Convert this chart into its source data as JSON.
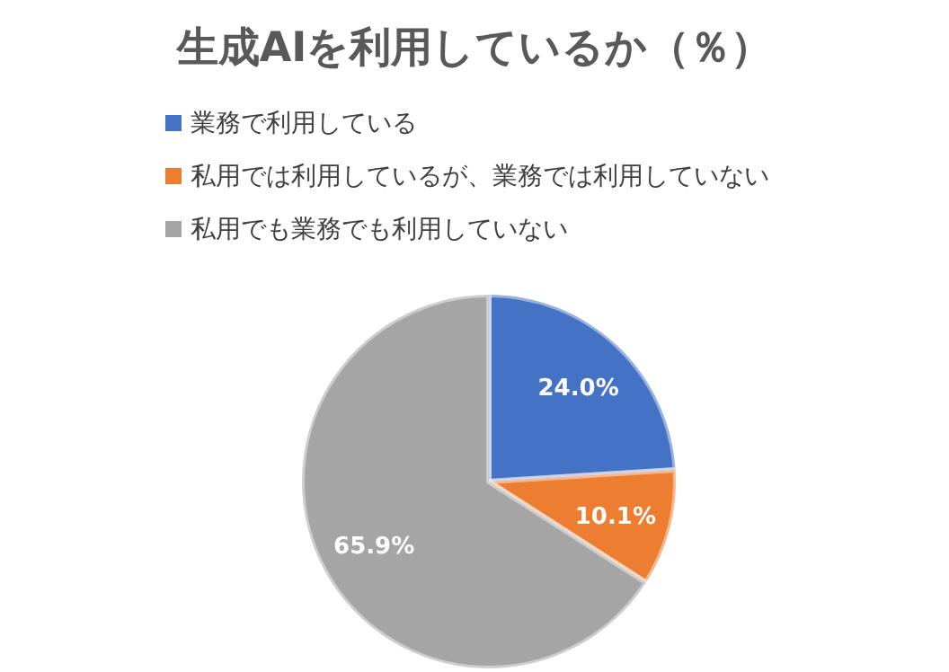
{
  "chart_data": {
    "type": "pie",
    "title": "生成AIを利用しているか（％）",
    "categories": [
      "業務で利用している",
      "私用では利用しているが、業務では利用していない",
      "私用でも業務でも利用していない"
    ],
    "values": [
      24.0,
      10.1,
      65.9
    ],
    "colors": [
      "#4472c4",
      "#ed7d31",
      "#a5a5a5"
    ],
    "value_labels": [
      "24.0%",
      "10.1%",
      "65.9%"
    ],
    "legend": "top"
  }
}
